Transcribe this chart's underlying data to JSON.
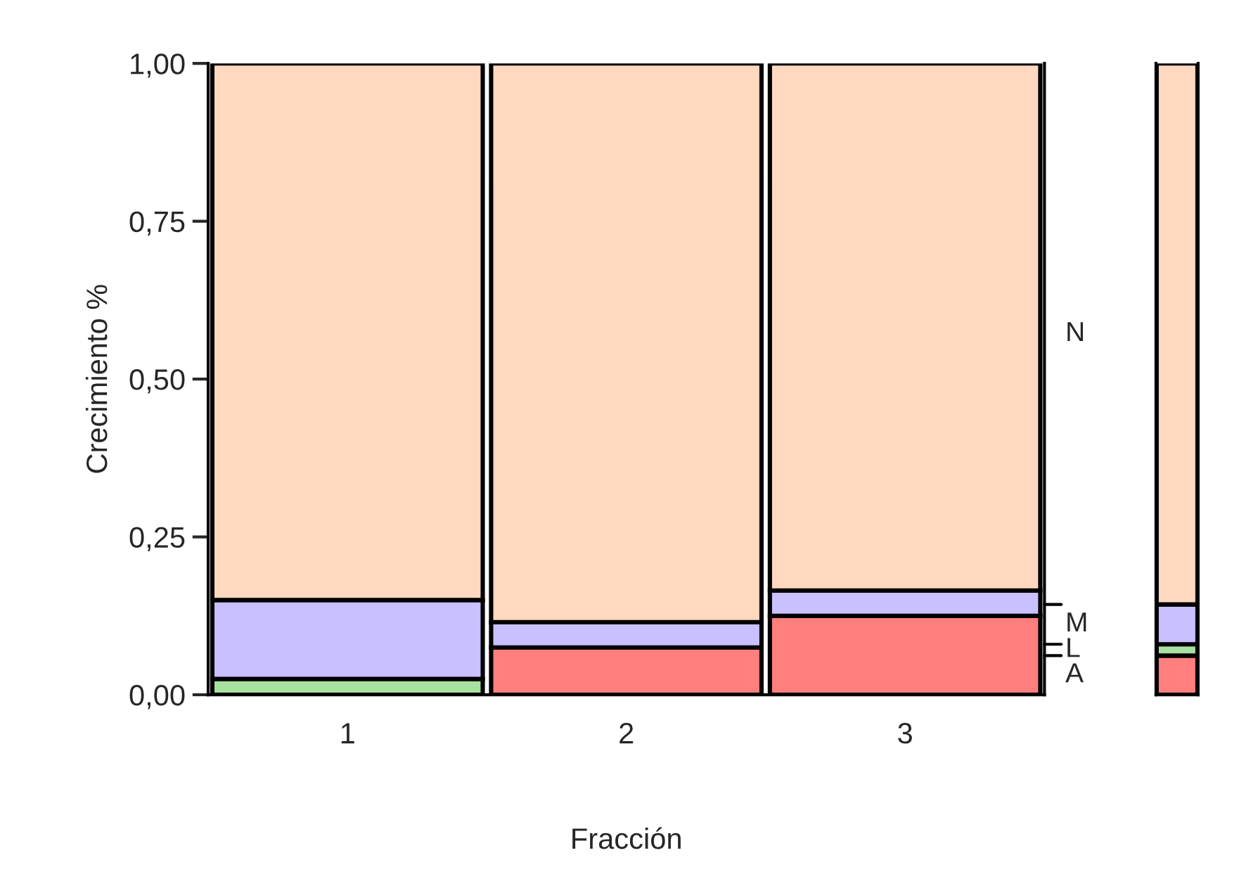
{
  "chart_data": [
    {
      "type": "bar",
      "stacked": true,
      "xlabel": "Fracción",
      "ylabel": "Crecimiento %",
      "categories": [
        "1",
        "2",
        "3"
      ],
      "ylim": [
        0,
        1
      ],
      "yticks": [
        {
          "value": 0,
          "label": "0,00"
        },
        {
          "value": 0.25,
          "label": "0,25"
        },
        {
          "value": 0.5,
          "label": "0,50"
        },
        {
          "value": 0.75,
          "label": "0,75"
        },
        {
          "value": 1,
          "label": "1,00"
        }
      ],
      "grid": false,
      "legend": "right",
      "series": [
        {
          "name": "A",
          "color": "#ff7f7f",
          "values": [
            0,
            0.075,
            0.125
          ]
        },
        {
          "name": "L",
          "color": "#a8e0a0",
          "values": [
            0.025,
            0,
            0
          ]
        },
        {
          "name": "M",
          "color": "#c8c0ff",
          "values": [
            0.125,
            0.04,
            0.04
          ]
        },
        {
          "name": "N",
          "color": "#ffd8c0",
          "values": [
            0.85,
            0.885,
            0.835
          ]
        }
      ]
    },
    {
      "type": "bar",
      "stacked": true,
      "categories": [
        null
      ],
      "ylim": [
        0,
        1
      ],
      "grid": false,
      "series": [
        {
          "color": "#ff7f7f",
          "values": [
            0.062
          ]
        },
        {
          "color": "#a8e0a0",
          "values": [
            0.018
          ]
        },
        {
          "color": "#c8c0ff",
          "values": [
            0.063
          ]
        },
        {
          "color": "#ffd8c0",
          "values": [
            0.857
          ]
        }
      ]
    }
  ]
}
